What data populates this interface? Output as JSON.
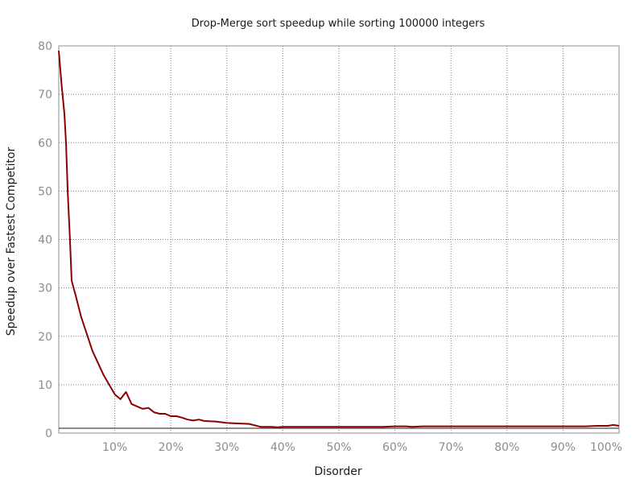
{
  "chart_data": {
    "type": "line",
    "title": "Drop-Merge sort speedup while sorting 100000 integers",
    "xlabel": "Disorder",
    "ylabel": "Speedup over Fastest Competitor",
    "xlim": [
      0,
      100
    ],
    "ylim": [
      0,
      80
    ],
    "x_ticks": [
      10,
      20,
      30,
      40,
      50,
      60,
      70,
      80,
      90,
      100
    ],
    "x_tick_labels": [
      "10%",
      "20%",
      "30%",
      "40%",
      "50%",
      "60%",
      "70%",
      "80%",
      "90%",
      "100%"
    ],
    "y_ticks": [
      0,
      10,
      20,
      30,
      40,
      50,
      60,
      70,
      80
    ],
    "y_tick_labels": [
      "0",
      "10",
      "20",
      "30",
      "40",
      "50",
      "60",
      "70",
      "80"
    ],
    "grid": true,
    "reference_line_y": 1,
    "series": [
      {
        "color": "#8b0000",
        "x": [
          0,
          0.5,
          1,
          1.3,
          1.6,
          2,
          2.3,
          3,
          4,
          5,
          6,
          7,
          8,
          9,
          10,
          11,
          12,
          13,
          14,
          15,
          16,
          17,
          18,
          19,
          20,
          21,
          22,
          23,
          24,
          25,
          26,
          28,
          30,
          32,
          34,
          36,
          38,
          39,
          40,
          42,
          45,
          50,
          52,
          54,
          56,
          58,
          60,
          62,
          63,
          65,
          70,
          75,
          80,
          85,
          90,
          92,
          94,
          96,
          98,
          99,
          100
        ],
        "y": [
          79,
          72,
          66,
          60,
          50,
          40,
          31.5,
          28.5,
          24,
          20.5,
          17,
          14.5,
          12,
          10,
          8,
          7,
          8.5,
          6,
          5.5,
          5,
          5.2,
          4.3,
          4,
          4,
          3.5,
          3.5,
          3.2,
          2.8,
          2.6,
          2.8,
          2.5,
          2.4,
          2.1,
          2,
          1.9,
          1.3,
          1.3,
          1.2,
          1.3,
          1.3,
          1.3,
          1.3,
          1.3,
          1.3,
          1.3,
          1.3,
          1.4,
          1.4,
          1.3,
          1.4,
          1.4,
          1.4,
          1.4,
          1.4,
          1.4,
          1.4,
          1.4,
          1.5,
          1.5,
          1.7,
          1.5
        ]
      }
    ]
  }
}
